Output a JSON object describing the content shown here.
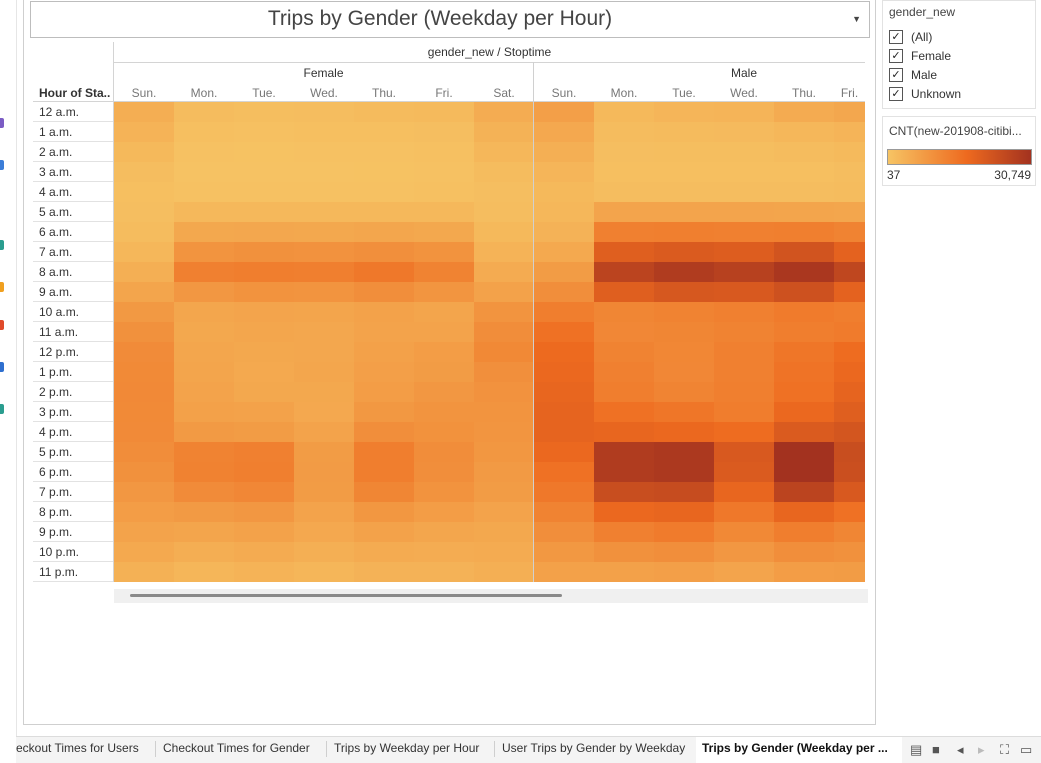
{
  "title": "Trips by Gender (Weekday per Hour)",
  "column_header": "gender_new / Stoptime",
  "row_header": "Hour of Sta..",
  "genders": [
    "Female",
    "Male"
  ],
  "days": [
    "Sun.",
    "Mon.",
    "Tue.",
    "Wed.",
    "Thu.",
    "Fri.",
    "Sat."
  ],
  "filter": {
    "title": "gender_new",
    "items": [
      {
        "label": "(All)",
        "checked": true
      },
      {
        "label": "Female",
        "checked": true
      },
      {
        "label": "Male",
        "checked": true
      },
      {
        "label": "Unknown",
        "checked": true
      }
    ]
  },
  "legend": {
    "title": "CNT(new-201908-citibi...",
    "min_label": "37",
    "max_label": "30,749",
    "color_low": "#f6c464",
    "color_mid": "#ee6a1f",
    "color_high": "#a3321f"
  },
  "tabs": [
    {
      "label": "eckout Times for Users",
      "active": false
    },
    {
      "label": "Checkout Times for Gender",
      "active": false
    },
    {
      "label": "Trips by Weekday per Hour",
      "active": false
    },
    {
      "label": "User Trips by Gender by Weekday",
      "active": false
    },
    {
      "label": "Trips by Gender (Weekday per ...",
      "active": true
    }
  ],
  "chart_data": {
    "type": "heatmap",
    "title": "Trips by Gender (Weekday per Hour)",
    "column_header": "gender_new / Stoptime",
    "row_header": "Hour of Sta..",
    "rows": [
      "12 a.m.",
      "1 a.m.",
      "2 a.m.",
      "3 a.m.",
      "4 a.m.",
      "5 a.m.",
      "6 a.m.",
      "7 a.m.",
      "8 a.m.",
      "9 a.m.",
      "10 a.m.",
      "11 a.m.",
      "12 p.m.",
      "1 p.m.",
      "2 p.m.",
      "3 p.m.",
      "4 p.m.",
      "5 p.m.",
      "6 p.m.",
      "7 p.m.",
      "8 p.m.",
      "9 p.m.",
      "10 p.m.",
      "11 p.m."
    ],
    "columns": [
      {
        "gender": "Female",
        "day": "Sun."
      },
      {
        "gender": "Female",
        "day": "Mon."
      },
      {
        "gender": "Female",
        "day": "Tue."
      },
      {
        "gender": "Female",
        "day": "Wed."
      },
      {
        "gender": "Female",
        "day": "Thu."
      },
      {
        "gender": "Female",
        "day": "Fri."
      },
      {
        "gender": "Female",
        "day": "Sat."
      },
      {
        "gender": "Male",
        "day": "Sun."
      },
      {
        "gender": "Male",
        "day": "Mon."
      },
      {
        "gender": "Male",
        "day": "Tue."
      },
      {
        "gender": "Male",
        "day": "Wed."
      },
      {
        "gender": "Male",
        "day": "Thu."
      },
      {
        "gender": "Male",
        "day": "Fri."
      }
    ],
    "value_range": [
      37,
      30749
    ],
    "values": [
      [
        2200,
        600,
        450,
        500,
        650,
        800,
        2400,
        4200,
        900,
        1300,
        1400,
        2600,
        3100
      ],
      [
        1500,
        300,
        250,
        300,
        350,
        400,
        1700,
        2900,
        600,
        700,
        750,
        1100,
        1400
      ],
      [
        900,
        180,
        150,
        170,
        200,
        250,
        1100,
        2000,
        400,
        450,
        450,
        600,
        800
      ],
      [
        500,
        120,
        100,
        110,
        140,
        180,
        600,
        1300,
        300,
        300,
        300,
        350,
        500
      ],
      [
        350,
        200,
        180,
        190,
        200,
        220,
        400,
        900,
        500,
        500,
        500,
        500,
        550
      ],
      [
        400,
        1000,
        1000,
        1000,
        1000,
        950,
        500,
        1100,
        3500,
        3500,
        3500,
        3400,
        3300
      ],
      [
        600,
        3000,
        3100,
        3000,
        3200,
        3000,
        900,
        1600,
        9500,
        9800,
        9600,
        9700,
        9000
      ],
      [
        1100,
        6000,
        6500,
        6300,
        6800,
        6200,
        1500,
        2800,
        17000,
        18000,
        17500,
        20000,
        16000
      ],
      [
        2000,
        9500,
        10000,
        9800,
        11000,
        9000,
        2600,
        4800,
        25000,
        27500,
        26000,
        29000,
        24000
      ],
      [
        3400,
        5500,
        6200,
        6000,
        7000,
        5800,
        3800,
        7000,
        17000,
        19000,
        18500,
        21000,
        16000
      ],
      [
        5200,
        3200,
        3500,
        3400,
        3800,
        3400,
        6000,
        10000,
        8500,
        9000,
        9500,
        10500,
        10000
      ],
      [
        6500,
        3000,
        3200,
        3100,
        3700,
        3600,
        7200,
        12500,
        8200,
        8500,
        9000,
        10000,
        10500
      ],
      [
        7500,
        3300,
        3000,
        3100,
        4000,
        4500,
        8000,
        14000,
        9000,
        8300,
        9500,
        11500,
        13500
      ],
      [
        7800,
        3400,
        2800,
        3200,
        4200,
        4800,
        6800,
        14500,
        9500,
        8200,
        9500,
        12000,
        14500
      ],
      [
        7900,
        3600,
        3000,
        3000,
        4600,
        5500,
        6300,
        15000,
        10000,
        8800,
        9800,
        12500,
        15500
      ],
      [
        7800,
        4000,
        3800,
        2900,
        5400,
        6000,
        6000,
        15500,
        12500,
        11500,
        10200,
        14500,
        17000
      ],
      [
        7700,
        5000,
        4800,
        3600,
        7000,
        6400,
        5800,
        15500,
        15000,
        14500,
        13500,
        18000,
        19500
      ],
      [
        7200,
        9000,
        9500,
        4800,
        10000,
        7200,
        5600,
        14500,
        27500,
        28500,
        18500,
        30749,
        22000
      ],
      [
        6500,
        9200,
        9700,
        4900,
        10000,
        7000,
        5100,
        12500,
        27500,
        28500,
        18000,
        30749,
        21500
      ],
      [
        5500,
        7500,
        8200,
        4700,
        8500,
        6200,
        4800,
        11000,
        22000,
        22500,
        15000,
        25000,
        18500
      ],
      [
        4500,
        5000,
        5500,
        3700,
        5600,
        4600,
        3700,
        9000,
        14500,
        15000,
        11000,
        15000,
        12500
      ],
      [
        3600,
        3400,
        3800,
        2900,
        3800,
        3200,
        3000,
        7000,
        9500,
        10500,
        8000,
        10000,
        8500
      ],
      [
        2800,
        2200,
        2500,
        2000,
        2600,
        2400,
        2600,
        5400,
        6500,
        7000,
        5500,
        7000,
        6500
      ],
      [
        1800,
        1200,
        1500,
        1200,
        1600,
        1600,
        2000,
        4000,
        4000,
        4200,
        3500,
        4500,
        4800
      ]
    ]
  }
}
